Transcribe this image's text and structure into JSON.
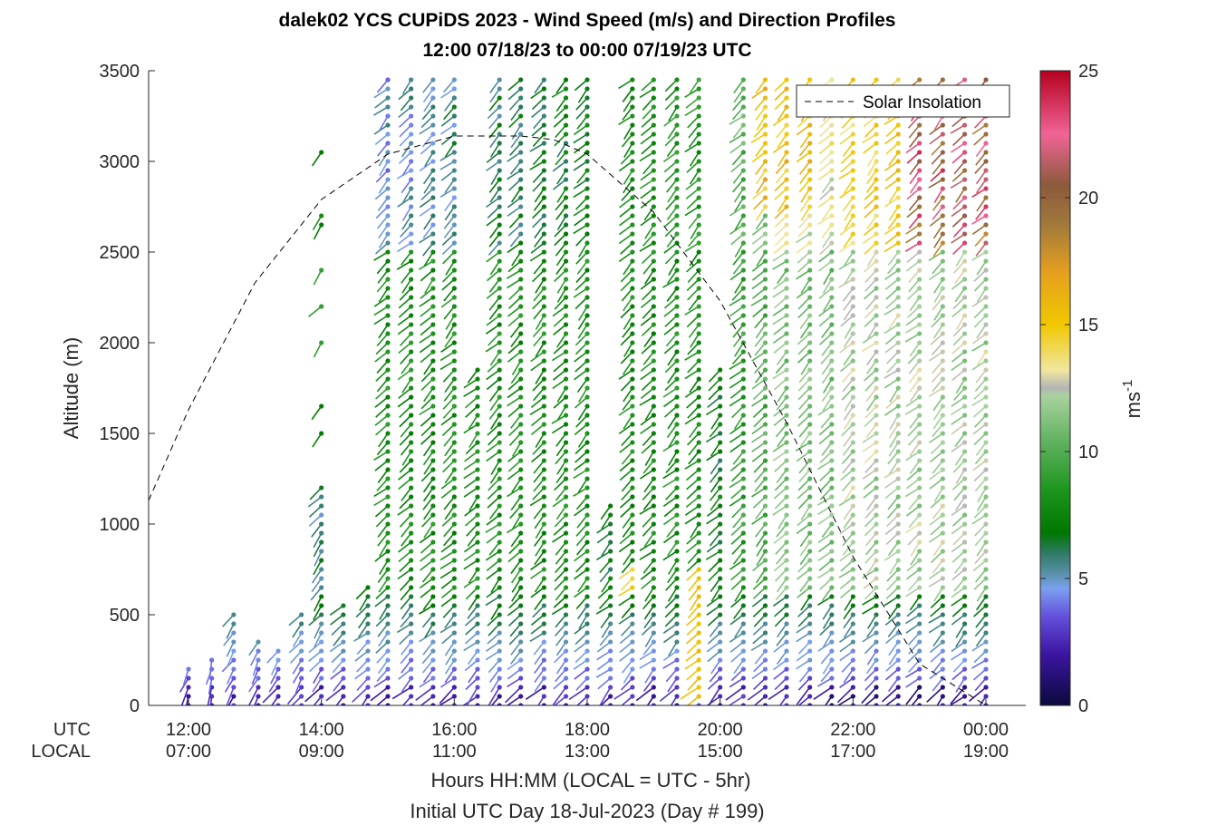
{
  "chart_data": {
    "type": "wind-profile",
    "title": "dalek02 YCS CUPiDS 2023 - Wind Speed (m/s) and Direction Profiles",
    "subtitle": "12:00 07/18/23 to 00:00 07/19/23  UTC",
    "ylabel": "Altitude (m)",
    "ylim": [
      0,
      3500
    ],
    "y_ticks": [
      "0",
      "500",
      "1000",
      "1500",
      "2000",
      "2500",
      "3000",
      "3500"
    ],
    "xlim": [
      11.4,
      24.6
    ],
    "x_tick_rows": {
      "utc_label": "UTC",
      "local_label": "LOCAL",
      "ticks": [
        {
          "hour": 12,
          "utc": "12:00",
          "local": "07:00"
        },
        {
          "hour": 14,
          "utc": "14:00",
          "local": "09:00"
        },
        {
          "hour": 16,
          "utc": "16:00",
          "local": "11:00"
        },
        {
          "hour": 18,
          "utc": "18:00",
          "local": "13:00"
        },
        {
          "hour": 20,
          "utc": "20:00",
          "local": "15:00"
        },
        {
          "hour": 22,
          "utc": "22:00",
          "local": "17:00"
        },
        {
          "hour": 24,
          "utc": "00:00",
          "local": "19:00"
        }
      ]
    },
    "xlabel": "Hours HH:MM  (LOCAL = UTC - 5hr)",
    "xlabel2": "Initial UTC Day 18-Jul-2023 (Day # 199)",
    "colorbar": {
      "label": "ms",
      "label_superscript": "-1",
      "range": [
        0,
        25
      ],
      "ticks": [
        "0",
        "5",
        "10",
        "15",
        "20",
        "25"
      ],
      "stops": [
        {
          "v": 0,
          "c": "#0a0a3c"
        },
        {
          "v": 2,
          "c": "#3c14a0"
        },
        {
          "v": 3.5,
          "c": "#6450dc"
        },
        {
          "v": 4.6,
          "c": "#7aa0f0"
        },
        {
          "v": 5.2,
          "c": "#5a90a8"
        },
        {
          "v": 6.0,
          "c": "#2e7a66"
        },
        {
          "v": 6.8,
          "c": "#007800"
        },
        {
          "v": 8.5,
          "c": "#1e961e"
        },
        {
          "v": 10.5,
          "c": "#64b464"
        },
        {
          "v": 12.2,
          "c": "#aad2a0"
        },
        {
          "v": 12.5,
          "c": "#b4b4b4"
        },
        {
          "v": 13.2,
          "c": "#f0e6a0"
        },
        {
          "v": 15,
          "c": "#f0c800"
        },
        {
          "v": 17,
          "c": "#e6a01e"
        },
        {
          "v": 19,
          "c": "#a0783c"
        },
        {
          "v": 20.5,
          "c": "#8c5a3c"
        },
        {
          "v": 22.5,
          "c": "#f06496"
        },
        {
          "v": 25,
          "c": "#b4001e"
        }
      ]
    },
    "legend": {
      "label": "Solar Insolation",
      "placement": "top-right",
      "style": "dashed"
    },
    "solar_insolation": {
      "x": [
        11.4,
        12,
        13,
        14,
        15,
        16,
        17,
        17.5,
        18,
        19,
        20,
        21,
        22,
        23,
        24,
        24.6
      ],
      "y": [
        1130,
        1630,
        2330,
        2790,
        3040,
        3140,
        3140,
        3120,
        3040,
        2720,
        2230,
        1560,
        820,
        230,
        0,
        0
      ]
    },
    "profiles": [
      {
        "t": 12.0,
        "top": 200,
        "base": 8,
        "dir": 200
      },
      {
        "t": 12.35,
        "top": 260,
        "base": 8,
        "dir": 200
      },
      {
        "t": 12.68,
        "top": 530,
        "base": 7,
        "dir": 210
      },
      {
        "t": 13.05,
        "top": 360,
        "base": 7,
        "dir": 210
      },
      {
        "t": 13.35,
        "top": 340,
        "base": 7,
        "dir": 215
      },
      {
        "t": 13.7,
        "top": 530,
        "base": 6,
        "dir": 215
      },
      {
        "t": 14.0,
        "top": 1200,
        "base": 6,
        "dir": 220,
        "extra": [
          {
            "h": 1500,
            "s": 7
          },
          {
            "h": 1650,
            "s": 7
          },
          {
            "h": 2000,
            "s": 9
          },
          {
            "h": 2200,
            "s": 9
          },
          {
            "h": 2400,
            "s": 9
          },
          {
            "h": 2650,
            "s": 7
          },
          {
            "h": 2700,
            "s": 8
          },
          {
            "h": 3050,
            "s": 7
          }
        ]
      },
      {
        "t": 14.33,
        "top": 590,
        "base": 6,
        "dir": 220
      },
      {
        "t": 14.7,
        "top": 660,
        "base": 6,
        "dir": 225
      },
      {
        "t": 15.0,
        "top": 3450,
        "base": 8,
        "dir": 225
      },
      {
        "t": 15.35,
        "top": 3450,
        "base": 8,
        "dir": 225
      },
      {
        "t": 15.68,
        "top": 3450,
        "base": 8,
        "dir": 225
      },
      {
        "t": 16.0,
        "top": 3450,
        "base": 8,
        "dir": 225
      },
      {
        "t": 16.35,
        "top": 1850,
        "base": 8,
        "dir": 225
      },
      {
        "t": 16.68,
        "top": 3450,
        "base": 8,
        "dir": 225
      },
      {
        "t": 17.0,
        "top": 3450,
        "base": 8,
        "dir": 225
      },
      {
        "t": 17.35,
        "top": 3450,
        "base": 8,
        "dir": 225
      },
      {
        "t": 17.68,
        "top": 3450,
        "base": 8,
        "dir": 225
      },
      {
        "t": 18.0,
        "top": 3450,
        "base": 8,
        "dir": 225
      },
      {
        "t": 18.35,
        "top": 1120,
        "base": 7,
        "dir": 225
      },
      {
        "t": 18.68,
        "top": 3450,
        "base": 8,
        "dir": 225
      },
      {
        "t": 19.0,
        "top": 3450,
        "base": 8,
        "dir": 225
      },
      {
        "t": 19.35,
        "top": 3450,
        "base": 8,
        "dir": 225
      },
      {
        "t": 19.68,
        "top": 3450,
        "base": 8,
        "dir": 225
      },
      {
        "t": 20.0,
        "top": 1880,
        "base": 7,
        "dir": 225
      },
      {
        "t": 20.35,
        "top": 3450,
        "base": 9,
        "dir": 225
      },
      {
        "t": 20.68,
        "top": 3450,
        "base": 10,
        "dir": 225
      },
      {
        "t": 21.0,
        "top": 3450,
        "base": 11,
        "dir": 225
      },
      {
        "t": 21.35,
        "top": 3450,
        "base": 11,
        "dir": 225
      },
      {
        "t": 21.68,
        "top": 3450,
        "base": 11,
        "dir": 225
      },
      {
        "t": 22.0,
        "top": 3450,
        "base": 12,
        "dir": 225
      },
      {
        "t": 22.35,
        "top": 3450,
        "base": 12,
        "dir": 225
      },
      {
        "t": 22.68,
        "top": 3450,
        "base": 12,
        "dir": 225
      },
      {
        "t": 23.0,
        "top": 3450,
        "base": 12,
        "dir": 225
      },
      {
        "t": 23.35,
        "top": 3450,
        "base": 12,
        "dir": 225
      },
      {
        "t": 23.68,
        "top": 3450,
        "base": 12,
        "dir": 225
      },
      {
        "t": 24.0,
        "top": 3450,
        "base": 12,
        "dir": 225
      }
    ]
  }
}
